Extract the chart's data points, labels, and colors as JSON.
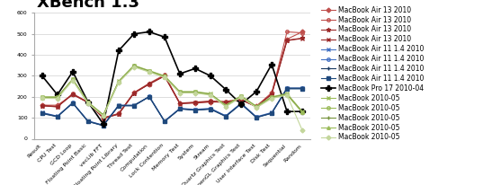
{
  "title": "XBench 1.3",
  "categories": [
    "Result",
    "CPU Test",
    "GCD Loop",
    "Floating Point Basic",
    "vecLib FFT",
    "Floating Point Library",
    "Thread Test",
    "Computation",
    "Lock Contention",
    "Memory Test",
    "System",
    "Stream",
    "Quartz Graphics Test",
    "OpenGL Graphics Test",
    "User Interface Test",
    "Disk Test",
    "Sequential",
    "Random"
  ],
  "series": [
    {
      "label": "MacBook Air 13 2010",
      "color": "#C0504D",
      "marker": "D",
      "markersize": 2.5,
      "linewidth": 0.8,
      "values": [
        160,
        160,
        210,
        175,
        100,
        120,
        220,
        260,
        300,
        170,
        170,
        175,
        175,
        185,
        155,
        220,
        475,
        510
      ]
    },
    {
      "label": "MacBook Air 13 2010",
      "color": "#C0504D",
      "marker": "o",
      "markersize": 2.5,
      "linewidth": 0.8,
      "fillstyle": "none",
      "values": [
        160,
        155,
        215,
        175,
        100,
        120,
        220,
        265,
        305,
        170,
        175,
        180,
        178,
        190,
        155,
        215,
        510,
        505
      ]
    },
    {
      "label": "MacBook Air 13 2010",
      "color": "#9B2929",
      "marker": "*",
      "markersize": 3.5,
      "linewidth": 0.8,
      "values": [
        158,
        153,
        212,
        172,
        98,
        118,
        218,
        262,
        300,
        168,
        173,
        178,
        175,
        187,
        153,
        213,
        470,
        480
      ]
    },
    {
      "label": "MacBook Air 13 2010",
      "color": "#9B2929",
      "marker": "x",
      "markersize": 3,
      "linewidth": 0.8,
      "values": [
        157,
        152,
        213,
        173,
        97,
        117,
        217,
        261,
        299,
        167,
        172,
        177,
        174,
        186,
        152,
        212,
        468,
        478
      ]
    },
    {
      "label": "MacBook Air 11 1.4 2010",
      "color": "#4472C4",
      "marker": "x",
      "markersize": 3,
      "linewidth": 0.8,
      "values": [
        125,
        108,
        170,
        85,
        65,
        160,
        160,
        200,
        85,
        145,
        140,
        145,
        110,
        170,
        105,
        125,
        240,
        240
      ]
    },
    {
      "label": "MacBook Air 11 1.4 2010",
      "color": "#4472C4",
      "marker": "o",
      "markersize": 2.5,
      "linewidth": 0.8,
      "fillstyle": "none",
      "values": [
        123,
        107,
        172,
        84,
        64,
        158,
        158,
        202,
        84,
        144,
        138,
        143,
        108,
        168,
        103,
        123,
        242,
        242
      ]
    },
    {
      "label": "MacBook Air 11 1.4 2010",
      "color": "#17375E",
      "marker": "+",
      "markersize": 3.5,
      "linewidth": 0.8,
      "values": [
        122,
        106,
        171,
        83,
        63,
        159,
        159,
        201,
        83,
        143,
        137,
        142,
        107,
        167,
        102,
        122,
        241,
        241
      ]
    },
    {
      "label": "MacBook Air 11 1.4 2010",
      "color": "#1F497D",
      "marker": "s",
      "markersize": 2.5,
      "linewidth": 0.8,
      "values": [
        120,
        105,
        170,
        82,
        62,
        157,
        157,
        200,
        82,
        142,
        136,
        141,
        106,
        166,
        101,
        121,
        238,
        238
      ]
    },
    {
      "label": "MacBook Pro 17 2010-04",
      "color": "#000000",
      "marker": "P",
      "markersize": 4,
      "linewidth": 1.2,
      "values": [
        300,
        210,
        320,
        175,
        70,
        420,
        500,
        510,
        485,
        310,
        335,
        300,
        235,
        165,
        225,
        355,
        130,
        130
      ]
    },
    {
      "label": "MacBook 2010-05",
      "color": "#9BBB59",
      "marker": "x",
      "markersize": 3,
      "linewidth": 0.8,
      "values": [
        200,
        200,
        285,
        175,
        115,
        275,
        350,
        325,
        300,
        225,
        225,
        215,
        160,
        205,
        155,
        200,
        215,
        130
      ]
    },
    {
      "label": "MacBook 2010-05",
      "color": "#9BBB59",
      "marker": "o",
      "markersize": 2.5,
      "linewidth": 0.8,
      "fillstyle": "none",
      "values": [
        198,
        198,
        283,
        173,
        113,
        273,
        348,
        323,
        298,
        223,
        223,
        213,
        158,
        203,
        153,
        198,
        213,
        128
      ]
    },
    {
      "label": "MacBook 2010-05",
      "color": "#76933C",
      "marker": "+",
      "markersize": 3.5,
      "linewidth": 0.8,
      "values": [
        197,
        197,
        282,
        172,
        112,
        272,
        347,
        322,
        297,
        222,
        222,
        212,
        157,
        202,
        152,
        197,
        212,
        127
      ]
    },
    {
      "label": "MacBook 2010-05",
      "color": "#9BBB59",
      "marker": "^",
      "markersize": 2.5,
      "linewidth": 0.8,
      "values": [
        195,
        195,
        280,
        170,
        110,
        270,
        345,
        320,
        295,
        220,
        220,
        210,
        155,
        200,
        150,
        195,
        210,
        125
      ]
    },
    {
      "label": "MacBook 2010-05",
      "color": "#C3D69B",
      "marker": "D",
      "markersize": 2.5,
      "linewidth": 0.8,
      "values": [
        193,
        192,
        278,
        168,
        108,
        268,
        342,
        318,
        292,
        218,
        218,
        208,
        153,
        198,
        148,
        192,
        208,
        40
      ]
    }
  ],
  "ylim": [
    0,
    600
  ],
  "yticks": [
    0,
    100,
    200,
    300,
    400,
    500,
    600
  ],
  "background_color": "#FFFFFF",
  "grid_color": "#D0D0D0",
  "title_fontsize": 13,
  "tick_fontsize": 4.5,
  "legend_fontsize": 5.5
}
